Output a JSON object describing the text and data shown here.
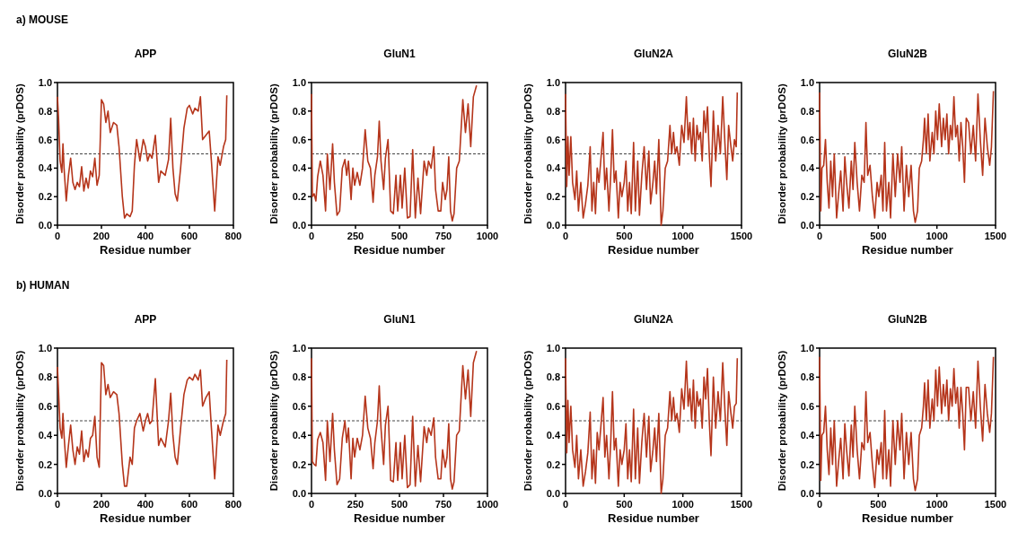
{
  "chart_data": [
    {
      "type": "line",
      "title": "APP",
      "xlabel": "Residue number",
      "ylabel": "Disorder probability (prDOS)",
      "annotations": [
        "a) MOUSE"
      ],
      "xlim": [
        0,
        800
      ],
      "xticks": [
        0,
        200,
        400,
        600,
        800
      ],
      "ylim": [
        0,
        1
      ],
      "yticks": [
        {
          "value": 0,
          "label": "0.0"
        },
        {
          "value": 0.2,
          "label": "0.2"
        },
        {
          "value": 0.4,
          "label": "0.4"
        },
        {
          "value": 0.6,
          "label": "0.6"
        },
        {
          "value": 0.8,
          "label": "0.8"
        },
        {
          "value": 1,
          "label": "1.0"
        }
      ],
      "ref_lines": [
        {
          "axis": "y",
          "value": 0.5,
          "color": "#444444",
          "line_style": "dashed"
        }
      ],
      "series": [
        {
          "color": "#b5351b",
          "x": [
            0,
            5,
            12,
            20,
            25,
            30,
            40,
            50,
            60,
            70,
            80,
            90,
            100,
            110,
            120,
            130,
            140,
            150,
            160,
            170,
            180,
            190,
            200,
            210,
            220,
            230,
            240,
            255,
            270,
            280,
            295,
            305,
            315,
            330,
            340,
            350,
            360,
            375,
            390,
            400,
            410,
            420,
            430,
            445,
            460,
            470,
            490,
            505,
            515,
            525,
            535,
            545,
            560,
            575,
            590,
            600,
            615,
            625,
            640,
            650,
            660,
            675,
            690,
            700,
            715,
            730,
            740,
            755,
            765,
            770
          ],
          "values": [
            0.9,
            0.75,
            0.45,
            0.37,
            0.57,
            0.4,
            0.17,
            0.35,
            0.47,
            0.3,
            0.25,
            0.3,
            0.27,
            0.41,
            0.24,
            0.33,
            0.26,
            0.38,
            0.34,
            0.47,
            0.28,
            0.35,
            0.88,
            0.85,
            0.72,
            0.8,
            0.65,
            0.72,
            0.7,
            0.55,
            0.2,
            0.05,
            0.08,
            0.06,
            0.1,
            0.42,
            0.6,
            0.45,
            0.6,
            0.55,
            0.45,
            0.5,
            0.47,
            0.63,
            0.3,
            0.38,
            0.35,
            0.46,
            0.75,
            0.4,
            0.22,
            0.17,
            0.4,
            0.68,
            0.82,
            0.84,
            0.78,
            0.82,
            0.8,
            0.9,
            0.6,
            0.63,
            0.66,
            0.45,
            0.1,
            0.48,
            0.42,
            0.55,
            0.6,
            0.91
          ]
        }
      ]
    },
    {
      "type": "line",
      "title": "GluN1",
      "xlabel": "Residue number",
      "ylabel": "Disorder probability (prDOS)",
      "xlim": [
        0,
        1000
      ],
      "xticks": [
        0,
        250,
        500,
        750,
        1000
      ],
      "ylim": [
        0,
        1
      ],
      "yticks": [
        {
          "value": 0,
          "label": "0.0"
        },
        {
          "value": 0.2,
          "label": "0.2"
        },
        {
          "value": 0.4,
          "label": "0.4"
        },
        {
          "value": 0.6,
          "label": "0.6"
        },
        {
          "value": 0.8,
          "label": "0.8"
        },
        {
          "value": 1,
          "label": "1.0"
        }
      ],
      "ref_lines": [
        {
          "axis": "y",
          "value": 0.5,
          "color": "#444444",
          "line_style": "dashed"
        }
      ],
      "series": [
        {
          "color": "#b5351b",
          "x": [
            0,
            5,
            15,
            25,
            35,
            50,
            65,
            80,
            90,
            105,
            120,
            130,
            145,
            160,
            175,
            190,
            200,
            210,
            225,
            235,
            245,
            260,
            275,
            290,
            305,
            320,
            335,
            350,
            360,
            375,
            385,
            395,
            410,
            420,
            435,
            450,
            465,
            480,
            490,
            505,
            515,
            530,
            545,
            560,
            575,
            590,
            605,
            620,
            640,
            655,
            665,
            680,
            695,
            705,
            720,
            735,
            745,
            760,
            770,
            780,
            790,
            800,
            810,
            825,
            840,
            860,
            875,
            890,
            905,
            920,
            938
          ],
          "values": [
            0.92,
            0.2,
            0.22,
            0.17,
            0.34,
            0.45,
            0.35,
            0.1,
            0.5,
            0.25,
            0.57,
            0.3,
            0.07,
            0.1,
            0.4,
            0.46,
            0.35,
            0.45,
            0.18,
            0.4,
            0.28,
            0.37,
            0.28,
            0.4,
            0.67,
            0.45,
            0.4,
            0.16,
            0.35,
            0.48,
            0.73,
            0.45,
            0.25,
            0.47,
            0.6,
            0.1,
            0.08,
            0.35,
            0.1,
            0.35,
            0.12,
            0.4,
            0.05,
            0.06,
            0.53,
            0.05,
            0.33,
            0.08,
            0.45,
            0.35,
            0.45,
            0.4,
            0.55,
            0.25,
            0.1,
            0.1,
            0.3,
            0.18,
            0.25,
            0.48,
            0.1,
            0.03,
            0.08,
            0.4,
            0.45,
            0.88,
            0.65,
            0.85,
            0.55,
            0.9,
            0.98
          ]
        }
      ]
    },
    {
      "type": "line",
      "title": "GluN2A",
      "xlabel": "Residue number",
      "ylabel": "Disorder probability (prDOS)",
      "xlim": [
        0,
        1500
      ],
      "xticks": [
        0,
        500,
        1000,
        1500
      ],
      "ylim": [
        0,
        1
      ],
      "yticks": [
        {
          "value": 0,
          "label": "0.0"
        },
        {
          "value": 0.2,
          "label": "0.2"
        },
        {
          "value": 0.4,
          "label": "0.4"
        },
        {
          "value": 0.6,
          "label": "0.6"
        },
        {
          "value": 0.8,
          "label": "0.8"
        },
        {
          "value": 1,
          "label": "1.0"
        }
      ],
      "ref_lines": [
        {
          "axis": "y",
          "value": 0.5,
          "color": "#444444",
          "line_style": "dashed"
        }
      ],
      "series": [
        {
          "color": "#b5351b",
          "x": [
            0,
            10,
            20,
            30,
            45,
            60,
            80,
            95,
            110,
            130,
            150,
            170,
            190,
            210,
            225,
            240,
            255,
            270,
            285,
            300,
            320,
            335,
            350,
            370,
            385,
            400,
            415,
            430,
            450,
            465,
            480,
            500,
            515,
            530,
            545,
            560,
            580,
            595,
            615,
            630,
            650,
            670,
            690,
            710,
            725,
            745,
            760,
            775,
            795,
            815,
            830,
            850,
            870,
            890,
            905,
            920,
            935,
            950,
            970,
            990,
            1010,
            1030,
            1045,
            1060,
            1075,
            1090,
            1105,
            1120,
            1135,
            1150,
            1165,
            1180,
            1195,
            1210,
            1225,
            1240,
            1260,
            1280,
            1300,
            1320,
            1340,
            1360,
            1375,
            1390,
            1410,
            1425,
            1440,
            1455,
            1464
          ],
          "values": [
            0.92,
            0.27,
            0.62,
            0.35,
            0.62,
            0.3,
            0.18,
            0.38,
            0.1,
            0.3,
            0.05,
            0.15,
            0.28,
            0.55,
            0.1,
            0.3,
            0.08,
            0.4,
            0.3,
            0.45,
            0.65,
            0.25,
            0.4,
            0.1,
            0.35,
            0.67,
            0.3,
            0.38,
            0.05,
            0.3,
            0.2,
            0.3,
            0.45,
            0.1,
            0.3,
            0.08,
            0.58,
            0.1,
            0.45,
            0.07,
            0.35,
            0.55,
            0.25,
            0.52,
            0.15,
            0.3,
            0.45,
            0.22,
            0.6,
            0.0,
            0.1,
            0.4,
            0.45,
            0.7,
            0.5,
            0.65,
            0.5,
            0.55,
            0.42,
            0.7,
            0.58,
            0.9,
            0.6,
            0.72,
            0.5,
            0.75,
            0.45,
            0.7,
            0.6,
            0.65,
            0.45,
            0.8,
            0.65,
            0.83,
            0.5,
            0.27,
            0.8,
            0.45,
            0.7,
            0.5,
            0.9,
            0.55,
            0.32,
            0.7,
            0.55,
            0.45,
            0.6,
            0.55,
            0.93
          ]
        }
      ]
    },
    {
      "type": "line",
      "title": "GluN2B",
      "xlabel": "Residue number",
      "ylabel": "Disorder probability (prDOS)",
      "xlim": [
        0,
        1500
      ],
      "xticks": [
        0,
        500,
        1000,
        1500
      ],
      "ylim": [
        0,
        1
      ],
      "yticks": [
        {
          "value": 0,
          "label": "0.0"
        },
        {
          "value": 0.2,
          "label": "0.2"
        },
        {
          "value": 0.4,
          "label": "0.4"
        },
        {
          "value": 0.6,
          "label": "0.6"
        },
        {
          "value": 0.8,
          "label": "0.8"
        },
        {
          "value": 1,
          "label": "1.0"
        }
      ],
      "ref_lines": [
        {
          "axis": "y",
          "value": 0.5,
          "color": "#444444",
          "line_style": "dashed"
        }
      ],
      "series": [
        {
          "color": "#b5351b",
          "x": [
            0,
            10,
            20,
            35,
            50,
            65,
            80,
            95,
            110,
            125,
            145,
            160,
            180,
            200,
            215,
            230,
            250,
            270,
            285,
            300,
            320,
            340,
            360,
            380,
            395,
            410,
            430,
            450,
            470,
            490,
            505,
            525,
            540,
            555,
            570,
            590,
            605,
            625,
            645,
            665,
            685,
            700,
            720,
            740,
            760,
            780,
            800,
            815,
            835,
            850,
            870,
            885,
            895,
            910,
            925,
            940,
            960,
            975,
            990,
            1005,
            1020,
            1040,
            1055,
            1070,
            1085,
            1100,
            1115,
            1130,
            1145,
            1160,
            1175,
            1190,
            1205,
            1220,
            1235,
            1250,
            1270,
            1290,
            1310,
            1330,
            1350,
            1370,
            1390,
            1410,
            1430,
            1450,
            1465,
            1482
          ],
          "values": [
            0.93,
            0.1,
            0.4,
            0.42,
            0.6,
            0.3,
            0.12,
            0.45,
            0.2,
            0.5,
            0.05,
            0.2,
            0.38,
            0.1,
            0.48,
            0.3,
            0.12,
            0.45,
            0.25,
            0.58,
            0.3,
            0.1,
            0.35,
            0.3,
            0.72,
            0.35,
            0.42,
            0.2,
            0.05,
            0.3,
            0.2,
            0.35,
            0.1,
            0.58,
            0.1,
            0.3,
            0.05,
            0.5,
            0.2,
            0.5,
            0.3,
            0.55,
            0.1,
            0.42,
            0.2,
            0.42,
            0.1,
            0.02,
            0.1,
            0.4,
            0.45,
            0.6,
            0.75,
            0.5,
            0.78,
            0.45,
            0.65,
            0.5,
            0.8,
            0.6,
            0.85,
            0.55,
            0.75,
            0.6,
            0.78,
            0.5,
            0.7,
            0.6,
            0.9,
            0.62,
            0.7,
            0.45,
            0.72,
            0.55,
            0.3,
            0.75,
            0.72,
            0.5,
            0.7,
            0.45,
            0.92,
            0.6,
            0.35,
            0.75,
            0.55,
            0.42,
            0.55,
            0.94
          ]
        }
      ]
    },
    {
      "type": "line",
      "title": "APP",
      "xlabel": "Residue number",
      "ylabel": "Disorder probability (prDOS)",
      "annotations": [
        "b) HUMAN"
      ],
      "xlim": [
        0,
        800
      ],
      "xticks": [
        0,
        200,
        400,
        600,
        800
      ],
      "ylim": [
        0,
        1
      ],
      "yticks": [
        {
          "value": 0,
          "label": "0.0"
        },
        {
          "value": 0.2,
          "label": "0.2"
        },
        {
          "value": 0.4,
          "label": "0.4"
        },
        {
          "value": 0.6,
          "label": "0.6"
        },
        {
          "value": 0.8,
          "label": "0.8"
        },
        {
          "value": 1,
          "label": "1.0"
        }
      ],
      "ref_lines": [
        {
          "axis": "y",
          "value": 0.5,
          "color": "#444444",
          "line_style": "dashed"
        }
      ],
      "series": [
        {
          "color": "#b5351b",
          "x": [
            0,
            5,
            12,
            20,
            25,
            30,
            40,
            50,
            60,
            70,
            80,
            90,
            100,
            110,
            120,
            130,
            140,
            150,
            160,
            170,
            180,
            190,
            200,
            210,
            220,
            230,
            240,
            255,
            270,
            280,
            295,
            305,
            315,
            330,
            340,
            350,
            360,
            375,
            390,
            400,
            410,
            420,
            430,
            445,
            460,
            470,
            490,
            505,
            515,
            525,
            535,
            545,
            560,
            575,
            590,
            600,
            615,
            625,
            640,
            650,
            660,
            675,
            690,
            700,
            715,
            730,
            740,
            755,
            765,
            770
          ],
          "values": [
            0.87,
            0.7,
            0.45,
            0.38,
            0.55,
            0.4,
            0.18,
            0.33,
            0.47,
            0.3,
            0.2,
            0.32,
            0.27,
            0.43,
            0.22,
            0.3,
            0.25,
            0.38,
            0.4,
            0.53,
            0.25,
            0.18,
            0.9,
            0.88,
            0.68,
            0.75,
            0.66,
            0.7,
            0.68,
            0.55,
            0.2,
            0.05,
            0.05,
            0.25,
            0.2,
            0.45,
            0.5,
            0.55,
            0.43,
            0.5,
            0.55,
            0.48,
            0.5,
            0.79,
            0.33,
            0.38,
            0.32,
            0.5,
            0.69,
            0.4,
            0.25,
            0.2,
            0.45,
            0.68,
            0.78,
            0.8,
            0.78,
            0.82,
            0.78,
            0.85,
            0.6,
            0.66,
            0.7,
            0.45,
            0.1,
            0.47,
            0.4,
            0.5,
            0.55,
            0.92
          ]
        }
      ]
    },
    {
      "type": "line",
      "title": "GluN1",
      "xlabel": "Residue number",
      "ylabel": "Disorder probability (prDOS)",
      "xlim": [
        0,
        1000
      ],
      "xticks": [
        0,
        250,
        500,
        750,
        1000
      ],
      "ylim": [
        0,
        1
      ],
      "yticks": [
        {
          "value": 0,
          "label": "0.0"
        },
        {
          "value": 0.2,
          "label": "0.2"
        },
        {
          "value": 0.4,
          "label": "0.4"
        },
        {
          "value": 0.6,
          "label": "0.6"
        },
        {
          "value": 0.8,
          "label": "0.8"
        },
        {
          "value": 1,
          "label": "1.0"
        }
      ],
      "ref_lines": [
        {
          "axis": "y",
          "value": 0.5,
          "color": "#444444",
          "line_style": "dashed"
        }
      ],
      "series": [
        {
          "color": "#b5351b",
          "x": [
            0,
            5,
            15,
            25,
            35,
            50,
            65,
            80,
            90,
            105,
            120,
            130,
            145,
            160,
            175,
            190,
            200,
            210,
            225,
            235,
            245,
            260,
            275,
            290,
            305,
            320,
            335,
            350,
            360,
            375,
            385,
            395,
            410,
            420,
            435,
            450,
            465,
            480,
            490,
            505,
            515,
            530,
            545,
            560,
            575,
            590,
            605,
            620,
            640,
            655,
            665,
            680,
            695,
            705,
            720,
            735,
            745,
            760,
            770,
            780,
            790,
            800,
            810,
            825,
            840,
            860,
            875,
            890,
            905,
            920,
            938
          ],
          "values": [
            0.93,
            0.22,
            0.2,
            0.19,
            0.37,
            0.42,
            0.35,
            0.09,
            0.5,
            0.22,
            0.55,
            0.3,
            0.06,
            0.1,
            0.38,
            0.5,
            0.35,
            0.45,
            0.1,
            0.38,
            0.25,
            0.38,
            0.3,
            0.4,
            0.67,
            0.45,
            0.38,
            0.17,
            0.35,
            0.5,
            0.74,
            0.45,
            0.2,
            0.47,
            0.6,
            0.09,
            0.08,
            0.35,
            0.09,
            0.35,
            0.1,
            0.4,
            0.04,
            0.06,
            0.53,
            0.05,
            0.33,
            0.08,
            0.46,
            0.35,
            0.45,
            0.4,
            0.52,
            0.25,
            0.1,
            0.1,
            0.3,
            0.18,
            0.25,
            0.48,
            0.1,
            0.03,
            0.08,
            0.4,
            0.43,
            0.88,
            0.65,
            0.85,
            0.53,
            0.9,
            0.98
          ]
        }
      ]
    },
    {
      "type": "line",
      "title": "GluN2A",
      "xlabel": "Residue number",
      "ylabel": "Disorder probability (prDOS)",
      "xlim": [
        0,
        1500
      ],
      "xticks": [
        0,
        500,
        1000,
        1500
      ],
      "ylim": [
        0,
        1
      ],
      "yticks": [
        {
          "value": 0,
          "label": "0.0"
        },
        {
          "value": 0.2,
          "label": "0.2"
        },
        {
          "value": 0.4,
          "label": "0.4"
        },
        {
          "value": 0.6,
          "label": "0.6"
        },
        {
          "value": 0.8,
          "label": "0.8"
        },
        {
          "value": 1,
          "label": "1.0"
        }
      ],
      "ref_lines": [
        {
          "axis": "y",
          "value": 0.5,
          "color": "#444444",
          "line_style": "dashed"
        }
      ],
      "series": [
        {
          "color": "#b5351b",
          "x": [
            0,
            10,
            20,
            30,
            45,
            60,
            80,
            95,
            110,
            130,
            150,
            170,
            190,
            210,
            225,
            240,
            255,
            270,
            285,
            300,
            320,
            335,
            350,
            370,
            385,
            400,
            415,
            430,
            450,
            465,
            480,
            500,
            515,
            530,
            545,
            560,
            580,
            595,
            615,
            630,
            650,
            670,
            690,
            710,
            725,
            745,
            760,
            775,
            795,
            815,
            830,
            850,
            870,
            890,
            905,
            920,
            935,
            950,
            970,
            990,
            1010,
            1030,
            1045,
            1060,
            1075,
            1090,
            1105,
            1120,
            1135,
            1150,
            1165,
            1180,
            1195,
            1210,
            1225,
            1240,
            1260,
            1280,
            1300,
            1320,
            1340,
            1360,
            1375,
            1390,
            1410,
            1425,
            1440,
            1455,
            1464
          ],
          "values": [
            0.93,
            0.28,
            0.64,
            0.35,
            0.6,
            0.3,
            0.18,
            0.4,
            0.1,
            0.3,
            0.05,
            0.15,
            0.28,
            0.56,
            0.1,
            0.3,
            0.07,
            0.42,
            0.3,
            0.45,
            0.66,
            0.25,
            0.4,
            0.1,
            0.35,
            0.7,
            0.3,
            0.38,
            0.05,
            0.3,
            0.2,
            0.3,
            0.48,
            0.1,
            0.3,
            0.08,
            0.58,
            0.1,
            0.45,
            0.07,
            0.35,
            0.55,
            0.25,
            0.53,
            0.15,
            0.3,
            0.45,
            0.22,
            0.55,
            0.0,
            0.1,
            0.4,
            0.45,
            0.7,
            0.5,
            0.66,
            0.5,
            0.55,
            0.42,
            0.72,
            0.58,
            0.91,
            0.6,
            0.72,
            0.5,
            0.78,
            0.45,
            0.7,
            0.6,
            0.65,
            0.45,
            0.8,
            0.65,
            0.86,
            0.5,
            0.26,
            0.8,
            0.45,
            0.7,
            0.5,
            0.9,
            0.55,
            0.33,
            0.7,
            0.55,
            0.45,
            0.6,
            0.62,
            0.93
          ]
        }
      ]
    },
    {
      "type": "line",
      "title": "GluN2B",
      "xlabel": "Residue number",
      "ylabel": "Disorder probability (prDOS)",
      "xlim": [
        0,
        1500
      ],
      "xticks": [
        0,
        500,
        1000,
        1500
      ],
      "ylim": [
        0,
        1
      ],
      "yticks": [
        {
          "value": 0,
          "label": "0.0"
        },
        {
          "value": 0.2,
          "label": "0.2"
        },
        {
          "value": 0.4,
          "label": "0.4"
        },
        {
          "value": 0.6,
          "label": "0.6"
        },
        {
          "value": 0.8,
          "label": "0.8"
        },
        {
          "value": 1,
          "label": "1.0"
        }
      ],
      "ref_lines": [
        {
          "axis": "y",
          "value": 0.5,
          "color": "#444444",
          "line_style": "dashed"
        }
      ],
      "series": [
        {
          "color": "#b5351b",
          "x": [
            0,
            10,
            20,
            35,
            50,
            65,
            80,
            95,
            110,
            125,
            145,
            160,
            180,
            200,
            215,
            230,
            250,
            270,
            285,
            300,
            320,
            340,
            360,
            380,
            395,
            410,
            430,
            450,
            470,
            490,
            505,
            525,
            540,
            555,
            570,
            590,
            605,
            625,
            645,
            665,
            685,
            700,
            720,
            740,
            760,
            780,
            800,
            815,
            835,
            850,
            870,
            885,
            895,
            910,
            925,
            940,
            960,
            975,
            990,
            1005,
            1020,
            1040,
            1055,
            1070,
            1085,
            1100,
            1115,
            1130,
            1145,
            1160,
            1175,
            1190,
            1205,
            1220,
            1235,
            1250,
            1270,
            1290,
            1310,
            1330,
            1350,
            1370,
            1390,
            1410,
            1430,
            1450,
            1465,
            1482
          ],
          "values": [
            0.94,
            0.09,
            0.4,
            0.42,
            0.6,
            0.3,
            0.13,
            0.45,
            0.2,
            0.5,
            0.05,
            0.2,
            0.38,
            0.1,
            0.48,
            0.3,
            0.12,
            0.47,
            0.25,
            0.6,
            0.3,
            0.1,
            0.35,
            0.3,
            0.7,
            0.35,
            0.42,
            0.2,
            0.04,
            0.3,
            0.2,
            0.35,
            0.1,
            0.57,
            0.1,
            0.3,
            0.05,
            0.5,
            0.2,
            0.5,
            0.3,
            0.55,
            0.1,
            0.42,
            0.2,
            0.42,
            0.1,
            0.02,
            0.1,
            0.4,
            0.45,
            0.6,
            0.76,
            0.5,
            0.78,
            0.45,
            0.65,
            0.5,
            0.85,
            0.6,
            0.87,
            0.55,
            0.75,
            0.6,
            0.78,
            0.5,
            0.72,
            0.6,
            0.86,
            0.62,
            0.73,
            0.45,
            0.73,
            0.55,
            0.3,
            0.73,
            0.73,
            0.5,
            0.7,
            0.45,
            0.91,
            0.6,
            0.36,
            0.75,
            0.55,
            0.42,
            0.55,
            0.94
          ]
        }
      ]
    }
  ]
}
